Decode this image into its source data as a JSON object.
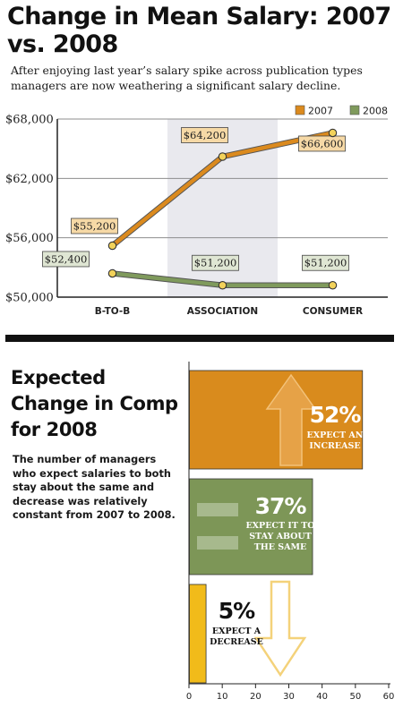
{
  "title": "Change in Mean Salary: 2007 vs. 2008",
  "subtitle": "After enjoying last year’s salary spike across publication types managers are now weathering a significant salary decline.",
  "colors": {
    "series_2007": "#db8a1e",
    "series_2008": "#7f9a5c",
    "label_2007_fill": "#f6d9a6",
    "label_2008_fill": "#dfe6d3",
    "highlight_band": "#e9e9ee",
    "increase": "#d98b1d",
    "same": "#7d9657",
    "decrease": "#f1bb1a"
  },
  "chart_data": [
    {
      "type": "line",
      "title": "Change in Mean Salary: 2007 vs. 2008",
      "categories": [
        "B-TO-B",
        "ASSOCIATION",
        "CONSUMER"
      ],
      "series": [
        {
          "name": "2007",
          "values": [
            55200,
            64200,
            66600
          ],
          "labels": [
            "$55,200",
            "$64,200",
            "$66,600"
          ]
        },
        {
          "name": "2008",
          "values": [
            52400,
            51200,
            51200
          ],
          "labels": [
            "$52,400",
            "$51,200",
            "$51,200"
          ]
        }
      ],
      "ylim": [
        50000,
        68000
      ],
      "yticks": [
        50000,
        56000,
        62000,
        68000
      ],
      "ytick_labels": [
        "$50,000",
        "$56,000",
        "$62,000",
        "$68,000"
      ],
      "grid": true,
      "legend": "top-right",
      "highlighted_category": "ASSOCIATION"
    },
    {
      "type": "bar",
      "orientation": "horizontal",
      "title": "Expected Change in Comp for 2008",
      "description": "The number of managers who expect salaries to both stay about the same and decrease was relatively constant from 2007 to 2008.",
      "categories": [
        "EXPECT AN INCREASE",
        "EXPECT IT TO STAY ABOUT THE SAME",
        "EXPECT A DECREASE"
      ],
      "values": [
        52,
        37,
        5
      ],
      "value_labels": [
        "52%",
        "37%",
        "5%"
      ],
      "desc_lines": [
        [
          "EXPECT AN",
          "INCREASE"
        ],
        [
          "EXPECT IT TO",
          "STAY ABOUT",
          "THE SAME"
        ],
        [
          "EXPECT A",
          "DECREASE"
        ]
      ],
      "xlim": [
        0,
        60
      ],
      "xticks": [
        0,
        10,
        20,
        30,
        40,
        50,
        60
      ],
      "icons": [
        "up-arrow-icon",
        "equals-icon",
        "down-arrow-icon"
      ]
    }
  ]
}
